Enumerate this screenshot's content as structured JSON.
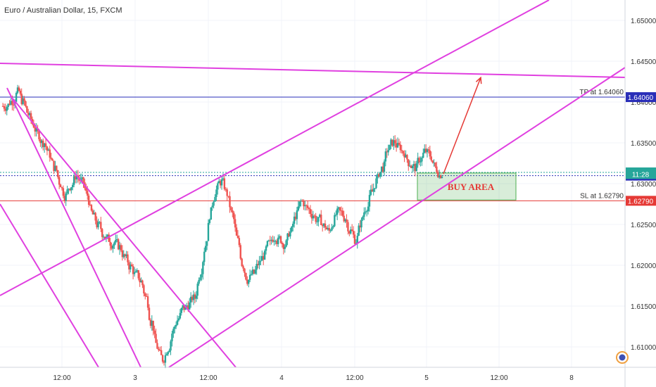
{
  "title": "Euro / Australian Dollar, 15, FXCM",
  "chart_data": {
    "type": "candlestick",
    "symbol": "EUR/AUD",
    "interval": "15",
    "source": "FXCM",
    "ylim": [
      1.6075,
      1.6535
    ],
    "y_ticks": [
      "1.65000",
      "1.64500",
      "1.64000",
      "1.63500",
      "1.63000",
      "1.62500",
      "1.62000",
      "1.61500",
      "1.61000"
    ],
    "x_ticks": [
      "12:00",
      "3",
      "12:00",
      "4",
      "12:00",
      "5",
      "12:00",
      "8"
    ],
    "price_path": [
      1.6395,
      1.6402,
      1.6412,
      1.64,
      1.6385,
      1.6372,
      1.636,
      1.635,
      1.6336,
      1.6318,
      1.63,
      1.6285,
      1.6298,
      1.631,
      1.6302,
      1.6286,
      1.6262,
      1.6248,
      1.6238,
      1.6232,
      1.6228,
      1.6222,
      1.621,
      1.6198,
      1.6188,
      1.618,
      1.616,
      1.613,
      1.61,
      1.6085,
      1.6098,
      1.612,
      1.6135,
      1.6148,
      1.6152,
      1.616,
      1.619,
      1.6225,
      1.6265,
      1.6292,
      1.6302,
      1.6288,
      1.6262,
      1.623,
      1.62,
      1.6182,
      1.619,
      1.6202,
      1.6212,
      1.6226,
      1.6236,
      1.6232,
      1.6226,
      1.6242,
      1.6262,
      1.6278,
      1.627,
      1.6262,
      1.6254,
      1.6248,
      1.6242,
      1.6256,
      1.6265,
      1.6258,
      1.6242,
      1.623,
      1.6252,
      1.6272,
      1.629,
      1.6306,
      1.632,
      1.6342,
      1.635,
      1.6345,
      1.6338,
      1.6325,
      1.632,
      1.633,
      1.634,
      1.6333,
      1.6318,
      1.6312
    ],
    "horizontal_levels": [
      {
        "name": "TP",
        "value": 1.6406,
        "label": "TP at 1.64060",
        "axis_label": "1.64060",
        "color": "#2a2eb8"
      },
      {
        "name": "SL",
        "value": 1.6279,
        "label": "SL at 1.62790",
        "axis_label": "1.62790",
        "color": "#e53935"
      },
      {
        "name": "last",
        "value": 1.63138,
        "axis_label": "1.63138",
        "color": "#26a69a"
      },
      {
        "name": "entry",
        "value": 1.63098,
        "axis_label": "1.63098",
        "color": "#2a2eb8"
      }
    ],
    "countdown": "11:28",
    "buy_zone": {
      "label": "BUY AREA",
      "top": 1.6313,
      "bottom": 1.628
    },
    "trend_lines_color": "#e040e0",
    "arrow_color": "#e53935",
    "target_arrow": {
      "from": 1.6312,
      "to": 1.643
    }
  },
  "widgets": {
    "settings_icon": "clock-gear-icon"
  }
}
